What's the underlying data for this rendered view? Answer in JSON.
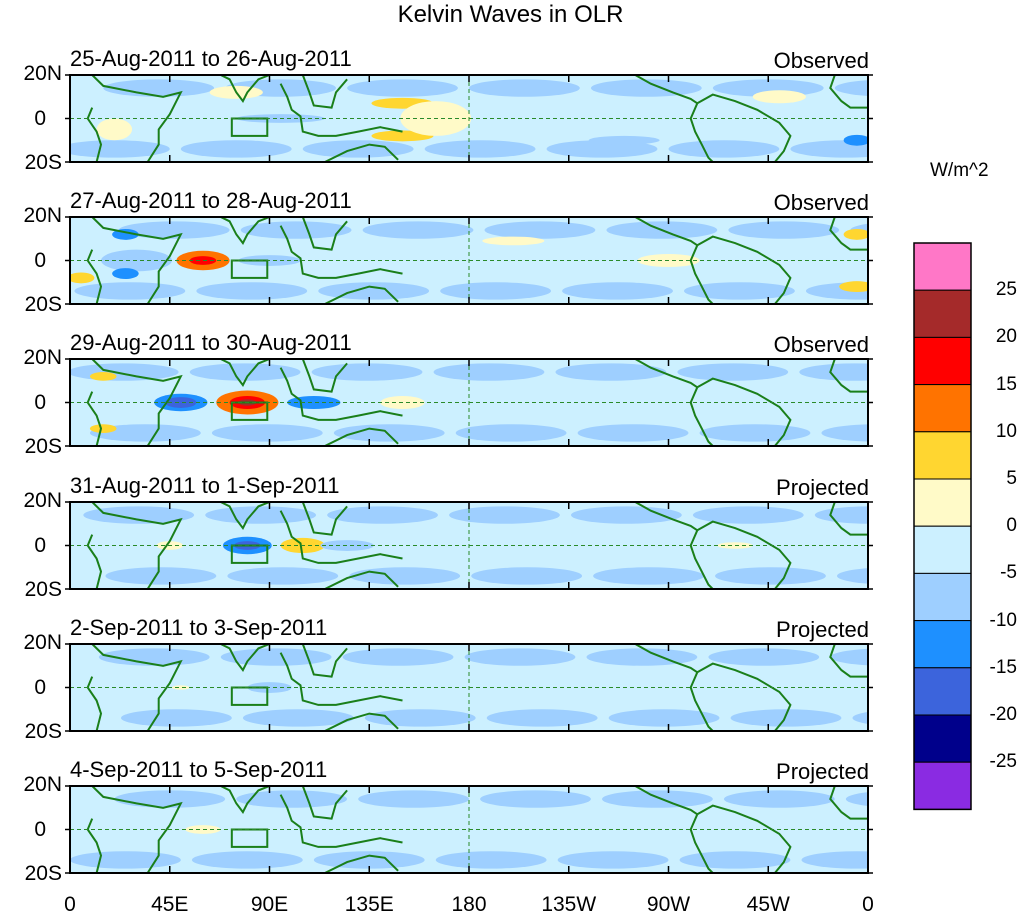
{
  "chart_data": {
    "type": "heatmap",
    "title": "Kelvin Waves in OLR",
    "units": "W/m^2",
    "y_tick_labels": [
      "20N",
      "0",
      "20S"
    ],
    "x_tick_labels": [
      "0",
      "45E",
      "90E",
      "135E",
      "180",
      "135W",
      "90W",
      "45W",
      "0"
    ],
    "xlim": [
      0,
      360
    ],
    "ylim": [
      -20,
      20
    ],
    "colorbar": {
      "labels": [
        "25",
        "20",
        "15",
        "10",
        "5",
        "0",
        "-5",
        "-10",
        "-15",
        "-20",
        "-25"
      ],
      "colors": [
        "#ff77c7",
        "#a52a2a",
        "#ff0000",
        "#ff7300",
        "#ffd630",
        "#fffac8",
        "#ccf0ff",
        "#9ecfff",
        "#1e90ff",
        "#3c64dc",
        "#00008b",
        "#8a2be2"
      ]
    },
    "panels": [
      {
        "date": "25-Aug-2011 to 26-Aug-2011",
        "status": "Observed",
        "anomalies": [
          {
            "lon": 150,
            "lat": 7,
            "w": 14,
            "h": 5,
            "level": "10"
          },
          {
            "lon": 150,
            "lat": -8,
            "w": 14,
            "h": 5,
            "level": "10"
          },
          {
            "lon": 165,
            "lat": 0,
            "w": 16,
            "h": 16,
            "level": "5"
          },
          {
            "lon": 75,
            "lat": 12,
            "w": 12,
            "h": 6,
            "level": "5"
          },
          {
            "lon": 20,
            "lat": -5,
            "w": 8,
            "h": 10,
            "level": "5"
          },
          {
            "lon": 95,
            "lat": 0,
            "w": 20,
            "h": 4,
            "level": "-5"
          },
          {
            "lon": 320,
            "lat": 10,
            "w": 12,
            "h": 6,
            "level": "5"
          },
          {
            "lon": 355,
            "lat": -10,
            "w": 6,
            "h": 5,
            "level": "-10"
          },
          {
            "lon": 250,
            "lat": -10,
            "w": 16,
            "h": 4,
            "level": "-5"
          }
        ]
      },
      {
        "date": "27-Aug-2011 to 28-Aug-2011",
        "status": "Observed",
        "anomalies": [
          {
            "lon": 60,
            "lat": 0,
            "w": 12,
            "h": 9,
            "level": "15"
          },
          {
            "lon": 60,
            "lat": 0,
            "w": 6,
            "h": 4,
            "level": "20"
          },
          {
            "lon": 30,
            "lat": 0,
            "w": 16,
            "h": 10,
            "level": "-5"
          },
          {
            "lon": 25,
            "lat": -6,
            "w": 6,
            "h": 5,
            "level": "-10"
          },
          {
            "lon": 25,
            "lat": 12,
            "w": 6,
            "h": 5,
            "level": "-10"
          },
          {
            "lon": 90,
            "lat": 0,
            "w": 14,
            "h": 5,
            "level": "-5"
          },
          {
            "lon": 355,
            "lat": -12,
            "w": 8,
            "h": 5,
            "level": "10"
          },
          {
            "lon": 355,
            "lat": 12,
            "w": 6,
            "h": 5,
            "level": "10"
          },
          {
            "lon": 5,
            "lat": -8,
            "w": 6,
            "h": 5,
            "level": "10"
          },
          {
            "lon": 200,
            "lat": 9,
            "w": 14,
            "h": 4,
            "level": "5"
          },
          {
            "lon": 270,
            "lat": 0,
            "w": 14,
            "h": 6,
            "level": "5"
          }
        ]
      },
      {
        "date": "29-Aug-2011 to 30-Aug-2011",
        "status": "Observed",
        "anomalies": [
          {
            "lon": 80,
            "lat": 0,
            "w": 14,
            "h": 11,
            "level": "15"
          },
          {
            "lon": 80,
            "lat": 0,
            "w": 8,
            "h": 6,
            "level": "20"
          },
          {
            "lon": 80,
            "lat": 0,
            "w": 4,
            "h": 3,
            "level": "25"
          },
          {
            "lon": 50,
            "lat": 0,
            "w": 12,
            "h": 8,
            "level": "-10"
          },
          {
            "lon": 50,
            "lat": 0,
            "w": 7,
            "h": 5,
            "level": "-15"
          },
          {
            "lon": 110,
            "lat": 0,
            "w": 12,
            "h": 6,
            "level": "-10"
          },
          {
            "lon": 15,
            "lat": 12,
            "w": 6,
            "h": 4,
            "level": "10"
          },
          {
            "lon": 15,
            "lat": -12,
            "w": 6,
            "h": 4,
            "level": "10"
          },
          {
            "lon": 150,
            "lat": 0,
            "w": 10,
            "h": 6,
            "level": "5"
          }
        ]
      },
      {
        "date": "31-Aug-2011 to 1-Sep-2011",
        "status": "Projected",
        "anomalies": [
          {
            "lon": 80,
            "lat": 0,
            "w": 11,
            "h": 8,
            "level": "-10"
          },
          {
            "lon": 80,
            "lat": 0,
            "w": 6,
            "h": 4,
            "level": "-15"
          },
          {
            "lon": 105,
            "lat": 0,
            "w": 10,
            "h": 7,
            "level": "10"
          },
          {
            "lon": 125,
            "lat": 0,
            "w": 12,
            "h": 5,
            "level": "-5"
          },
          {
            "lon": 45,
            "lat": 0,
            "w": 6,
            "h": 4,
            "level": "5"
          },
          {
            "lon": 300,
            "lat": 0,
            "w": 8,
            "h": 3,
            "level": "5"
          }
        ]
      },
      {
        "date": "2-Sep-2011 to 3-Sep-2011",
        "status": "Projected",
        "anomalies": [
          {
            "lon": 90,
            "lat": 0,
            "w": 10,
            "h": 5,
            "level": "-5"
          },
          {
            "lon": 50,
            "lat": 0,
            "w": 4,
            "h": 2,
            "level": "5"
          }
        ]
      },
      {
        "date": "4-Sep-2011 to 5-Sep-2011",
        "status": "Projected",
        "anomalies": [
          {
            "lon": 60,
            "lat": 0,
            "w": 8,
            "h": 4,
            "level": "5"
          }
        ]
      }
    ]
  }
}
